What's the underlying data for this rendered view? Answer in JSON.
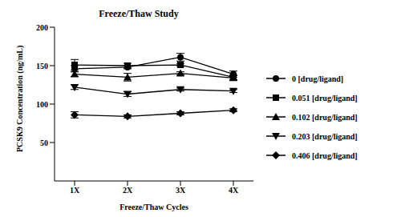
{
  "chart_data": {
    "type": "line",
    "title": "Freeze/Thaw Study",
    "x_label": "Freeze/Thaw Cycles",
    "y_label": "PCSK9 Concentration (ng/mL)",
    "categories": [
      "1X",
      "2X",
      "3X",
      "4X"
    ],
    "ylim": [
      0,
      200
    ],
    "yticks": [
      50,
      100,
      150,
      200
    ],
    "grid": false,
    "legend": "right",
    "series": [
      {
        "name": "0 [drug/ligand]",
        "color": "#000000",
        "marker": "circle",
        "values": [
          146,
          148,
          161,
          139
        ],
        "errors": [
          4,
          2,
          5,
          4
        ]
      },
      {
        "name": "0.051 [drug/ligand]",
        "color": "#000000",
        "marker": "square",
        "values": [
          151,
          150,
          151,
          135
        ],
        "errors": [
          7,
          3,
          2,
          3
        ]
      },
      {
        "name": "0.102 [drug/ligand]",
        "color": "#000000",
        "marker": "triangle-up",
        "values": [
          139,
          135,
          140,
          134
        ],
        "errors": [
          3,
          5,
          2,
          3
        ]
      },
      {
        "name": "0.203 [drug/ligand]",
        "color": "#000000",
        "marker": "triangle-down",
        "values": [
          122,
          113,
          119,
          117
        ],
        "errors": [
          3,
          3,
          2,
          2
        ]
      },
      {
        "name": "0.406 [drug/ligand]",
        "color": "#000000",
        "marker": "diamond",
        "values": [
          86,
          84,
          88,
          92
        ],
        "errors": [
          4,
          2,
          2,
          2
        ]
      }
    ]
  }
}
